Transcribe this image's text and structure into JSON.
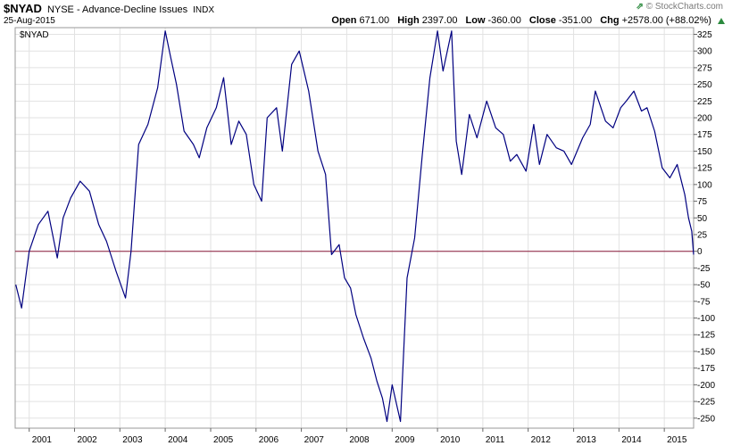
{
  "header": {
    "symbol": "$NYAD",
    "name": "NYSE - Advance-Decline Issues",
    "exchange": "INDX",
    "date": "25-Aug-2015",
    "brand": "© StockCharts.com",
    "open_label": "Open",
    "open": "671.00",
    "high_label": "High",
    "high": "2397.00",
    "low_label": "Low",
    "low": "-360.00",
    "close_label": "Close",
    "close": "-351.00",
    "chg_label": "Chg",
    "chg": "+2578.00 (+88.02%)"
  },
  "colors": {
    "line": "#000080",
    "zero_line": "#8b1a3a",
    "grid": "#e2e2e2",
    "change_up": "#2b8a3e"
  },
  "chart_data": {
    "type": "line",
    "legend_label": "$NYAD",
    "title": "",
    "xlabel": "",
    "ylabel": "",
    "x_ticks": [
      "2001",
      "2002",
      "2003",
      "2004",
      "2005",
      "2006",
      "2007",
      "2008",
      "2009",
      "2010",
      "2011",
      "2012",
      "2013",
      "2014",
      "2015"
    ],
    "xlim": [
      "2000-09-10",
      "2015-08-25"
    ],
    "y_ticks": [
      -250,
      -225,
      -200,
      -175,
      -150,
      -125,
      -100,
      -75,
      -50,
      -25,
      0,
      25,
      50,
      75,
      100,
      125,
      150,
      175,
      200,
      225,
      250,
      275,
      300,
      325
    ],
    "ylim": [
      -265,
      335
    ],
    "grid": true,
    "reference_line": 0,
    "series": [
      {
        "x": [
          "2000-09-15",
          "2000-11-01",
          "2001-01-01",
          "2001-03-15",
          "2001-06-01",
          "2001-08-15",
          "2001-10-01",
          "2001-12-01",
          "2002-02-15",
          "2002-05-01",
          "2002-07-15",
          "2002-09-15",
          "2002-12-01",
          "2003-02-15",
          "2003-04-01",
          "2003-06-01",
          "2003-08-15",
          "2003-11-01",
          "2004-01-01",
          "2004-02-15",
          "2004-04-01",
          "2004-06-01",
          "2004-08-15",
          "2004-10-01",
          "2004-12-01",
          "2005-02-15",
          "2005-04-15",
          "2005-06-15",
          "2005-08-15",
          "2005-10-15",
          "2005-12-15",
          "2006-02-15",
          "2006-04-01",
          "2006-06-15",
          "2006-08-01",
          "2006-10-15",
          "2006-12-15",
          "2007-03-01",
          "2007-05-15",
          "2007-07-15",
          "2007-09-01",
          "2007-11-01",
          "2007-12-15",
          "2008-02-01",
          "2008-03-15",
          "2008-05-15",
          "2008-07-15",
          "2008-09-01",
          "2008-10-15",
          "2008-11-20",
          "2009-01-01",
          "2009-03-09",
          "2009-05-01",
          "2009-07-01",
          "2009-09-01",
          "2009-11-01",
          "2010-01-01",
          "2010-02-15",
          "2010-04-25",
          "2010-06-01",
          "2010-07-15",
          "2010-09-15",
          "2010-11-15",
          "2011-02-01",
          "2011-04-15",
          "2011-06-15",
          "2011-08-10",
          "2011-10-01",
          "2011-12-15",
          "2012-02-15",
          "2012-04-01",
          "2012-06-01",
          "2012-08-15",
          "2012-10-15",
          "2012-12-15",
          "2013-03-15",
          "2013-05-15",
          "2013-06-25",
          "2013-09-15",
          "2013-11-15",
          "2014-01-15",
          "2014-03-01",
          "2014-05-01",
          "2014-07-01",
          "2014-08-15",
          "2014-10-15",
          "2014-12-15",
          "2015-02-15",
          "2015-04-15",
          "2015-06-15",
          "2015-07-15",
          "2015-08-10",
          "2015-08-25"
        ],
        "y": [
          -50,
          -85,
          0,
          40,
          60,
          -10,
          50,
          80,
          105,
          90,
          40,
          15,
          -30,
          -70,
          0,
          160,
          190,
          245,
          330,
          290,
          250,
          180,
          160,
          140,
          185,
          215,
          260,
          160,
          195,
          175,
          100,
          75,
          200,
          215,
          150,
          280,
          300,
          240,
          150,
          115,
          -5,
          10,
          -40,
          -55,
          -95,
          -130,
          -160,
          -195,
          -220,
          -255,
          -200,
          -255,
          -40,
          20,
          145,
          260,
          330,
          270,
          330,
          165,
          115,
          205,
          170,
          225,
          185,
          175,
          135,
          145,
          120,
          190,
          130,
          175,
          155,
          150,
          130,
          170,
          190,
          240,
          195,
          185,
          215,
          225,
          240,
          210,
          215,
          180,
          125,
          110,
          130,
          85,
          50,
          30,
          -5
        ]
      }
    ]
  }
}
